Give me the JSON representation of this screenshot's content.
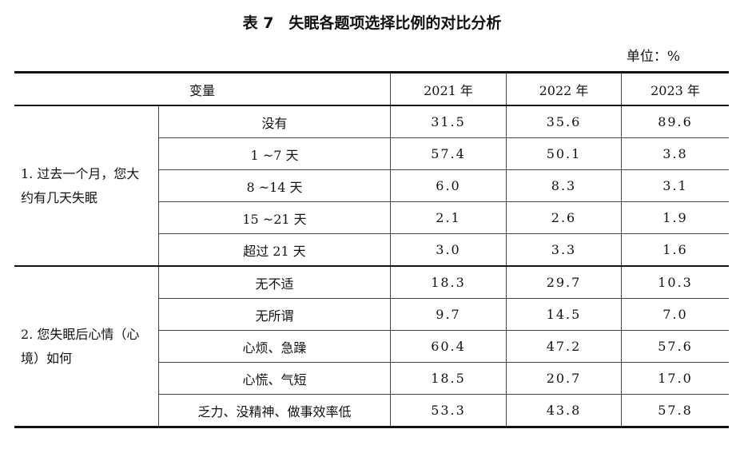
{
  "title": "表 7　失眠各题项选择比例的对比分析",
  "unit": "单位：%",
  "table": {
    "header": [
      "变量",
      "2021 年",
      "2022 年",
      "2023 年"
    ],
    "groups": [
      {
        "label": "1. 过去一个月，您大约有几天失眠",
        "rows": [
          {
            "item": "没有",
            "values": [
              "31.5",
              "35.6",
              "89.6"
            ]
          },
          {
            "item": "1 ~7 天",
            "values": [
              "57.4",
              "50.1",
              "3.8"
            ]
          },
          {
            "item": "8 ~14 天",
            "values": [
              "6.0",
              "8.3",
              "3.1"
            ]
          },
          {
            "item": "15 ~21 天",
            "values": [
              "2.1",
              "2.6",
              "1.9"
            ]
          },
          {
            "item": "超过 21 天",
            "values": [
              "3.0",
              "3.3",
              "1.6"
            ]
          }
        ]
      },
      {
        "label": "2. 您失眠后心情（心境）如何",
        "rows": [
          {
            "item": "无不适",
            "values": [
              "18.3",
              "29.7",
              "10.3"
            ]
          },
          {
            "item": "无所谓",
            "values": [
              "9.7",
              "14.5",
              "7.0"
            ]
          },
          {
            "item": "心烦、急躁",
            "values": [
              "60.4",
              "47.2",
              "57.6"
            ]
          },
          {
            "item": "心慌、气短",
            "values": [
              "18.5",
              "20.7",
              "17.0"
            ]
          },
          {
            "item": "乏力、没精神、做事效率低",
            "values": [
              "53.3",
              "43.8",
              "57.8"
            ]
          }
        ]
      }
    ]
  }
}
